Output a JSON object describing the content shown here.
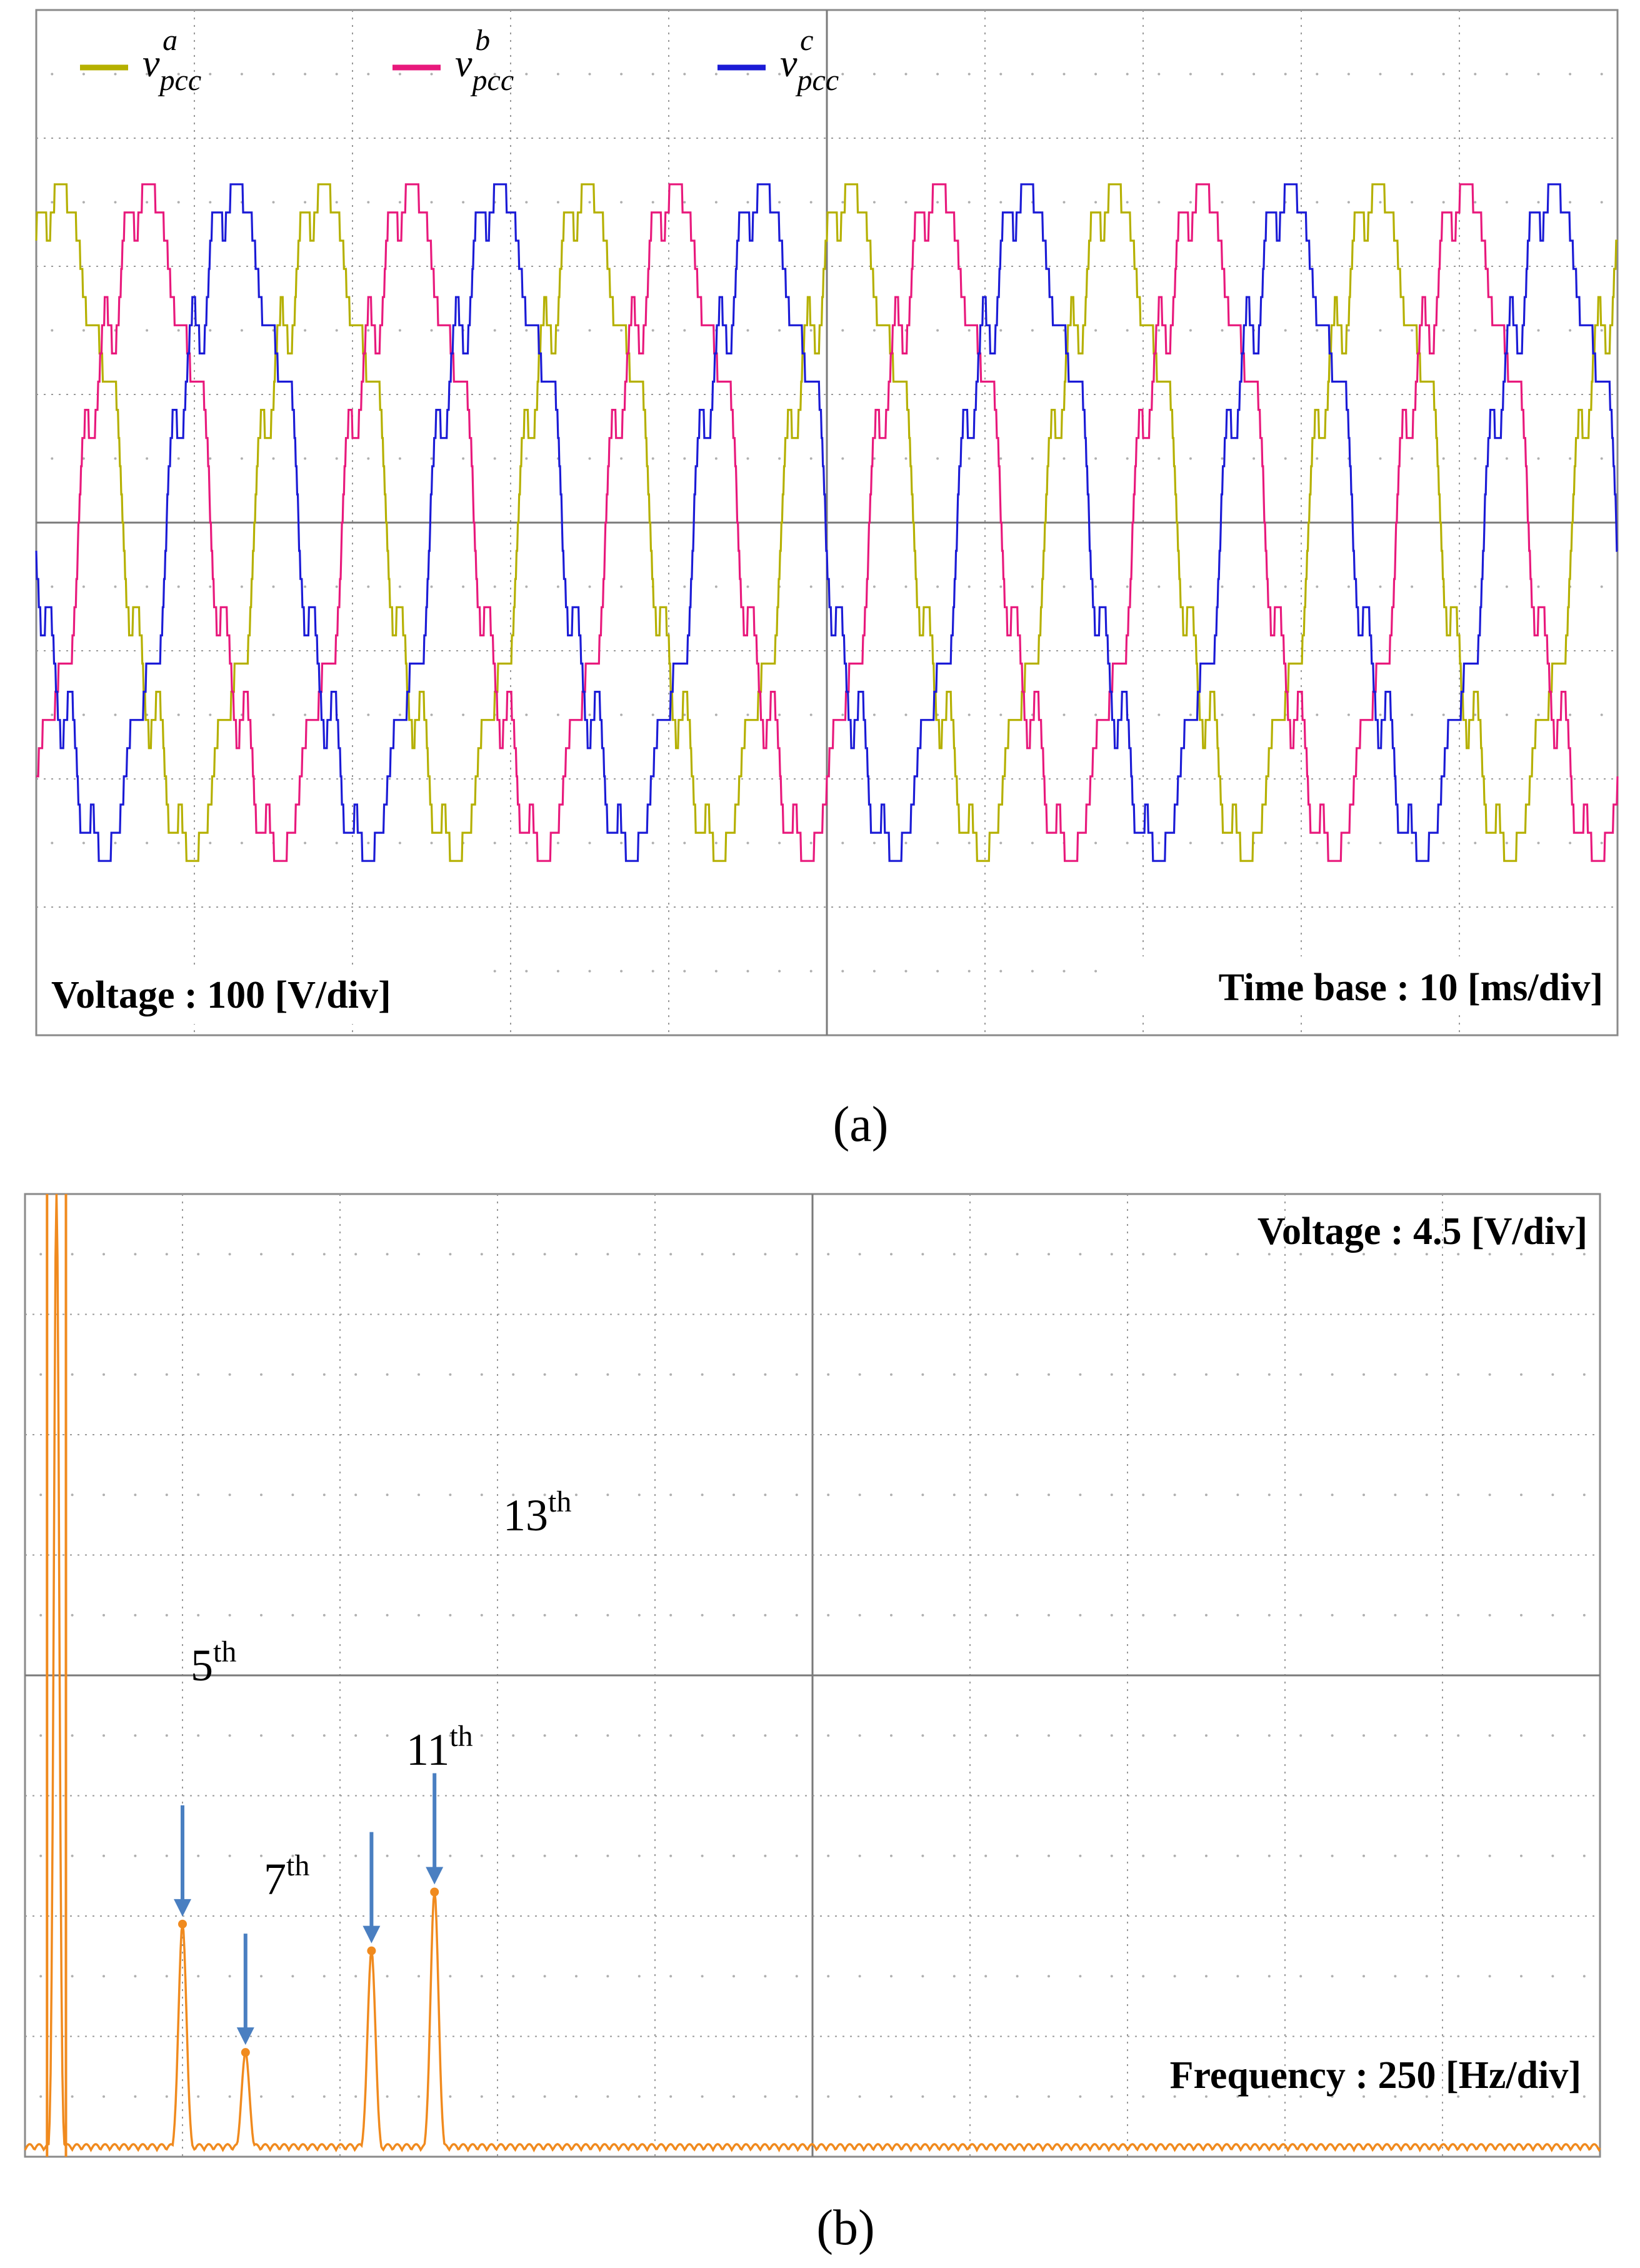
{
  "colors": {
    "phase_a": "#b5b000",
    "phase_b": "#e8197c",
    "phase_c": "#1b1bd6",
    "spectrum": "#f08a1e",
    "arrow": "#4a7fc1",
    "grid": "#9a9a9a"
  },
  "panel_a": {
    "caption": "(a)",
    "legend": [
      {
        "base": "v",
        "sub": "pcc",
        "sup": "a"
      },
      {
        "base": "v",
        "sub": "pcc",
        "sup": "b"
      },
      {
        "base": "v",
        "sub": "pcc",
        "sup": "c"
      }
    ],
    "voltage_scale": "Voltage : 100 [V/div]",
    "time_base": "Time base : 10 [ms/div]"
  },
  "panel_b": {
    "caption": "(b)",
    "voltage_scale": "Voltage : 4.5 [V/div]",
    "frequency_scale": "Frequency : 250 [Hz/div]",
    "annotations": [
      {
        "num": "5",
        "sup": "th"
      },
      {
        "num": "7",
        "sup": "th"
      },
      {
        "num": "11",
        "sup": "th"
      },
      {
        "num": "13",
        "sup": "th"
      }
    ]
  },
  "chart_data": [
    {
      "type": "line",
      "x_unit": "ms",
      "y_unit": "V",
      "xlim": [
        0,
        120
      ],
      "ylim": [
        -400,
        400
      ],
      "grid": true,
      "legend_placement": "top-left",
      "fundamental_hz": 50,
      "series": [
        {
          "name": "a",
          "amplitude": 250,
          "phase_deg": 60,
          "harmonic_ripple": 35
        },
        {
          "name": "b",
          "amplitude": 250,
          "phase_deg": -60,
          "harmonic_ripple": 35
        },
        {
          "name": "c",
          "amplitude": 250,
          "phase_deg": 180,
          "harmonic_ripple": 35
        }
      ]
    },
    {
      "type": "line",
      "x_unit": "Hz",
      "y_unit": "V",
      "xlim": [
        0,
        2500
      ],
      "ylim": [
        0,
        36
      ],
      "grid": true,
      "peaks": [
        {
          "order": 1,
          "freq": 50,
          "value": 36
        },
        {
          "order": 5,
          "freq": 250,
          "value": 8.7
        },
        {
          "order": 7,
          "freq": 350,
          "value": 3.9
        },
        {
          "order": 11,
          "freq": 550,
          "value": 7.7
        },
        {
          "order": 13,
          "freq": 650,
          "value": 9.9
        }
      ]
    }
  ]
}
